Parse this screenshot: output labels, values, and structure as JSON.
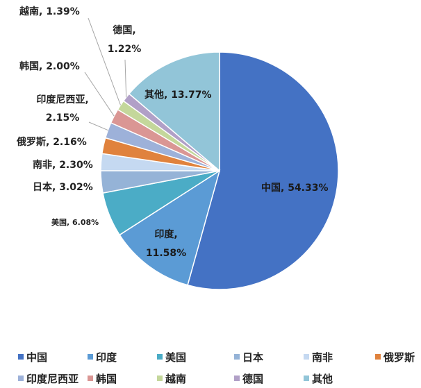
{
  "chart_data": {
    "type": "pie",
    "title": "",
    "legend_position": "bottom",
    "slices": [
      {
        "name": "中国",
        "value": 54.33,
        "label": "中国, 54.33%",
        "color": "#4472C4"
      },
      {
        "name": "印度",
        "value": 11.58,
        "label": "印度, 11.58%",
        "color": "#5B9BD5"
      },
      {
        "name": "美国",
        "value": 6.08,
        "label": "美国, 6.08%",
        "color": "#4BACC6"
      },
      {
        "name": "日本",
        "value": 3.02,
        "label": "日本, 3.02%",
        "color": "#95B3D7"
      },
      {
        "name": "南非",
        "value": 2.3,
        "label": "南非, 2.30%",
        "color": "#C5D9F1"
      },
      {
        "name": "俄罗斯",
        "value": 2.16,
        "label": "俄罗斯, 2.16%",
        "color": "#E0823D"
      },
      {
        "name": "印度尼西亚",
        "value": 2.15,
        "label": "印度尼西亚, 2.15%",
        "color": "#9DB1D9"
      },
      {
        "name": "韩国",
        "value": 2.0,
        "label": "韩国, 2.00%",
        "color": "#DA9694"
      },
      {
        "name": "越南",
        "value": 1.39,
        "label": "越南, 1.39%",
        "color": "#C4D79B"
      },
      {
        "name": "德国",
        "value": 1.22,
        "label": "德国, 1.22%",
        "color": "#B1A0C7"
      },
      {
        "name": "其他",
        "value": 13.77,
        "label": "其他, 13.77%",
        "color": "#92C5D8"
      }
    ]
  }
}
